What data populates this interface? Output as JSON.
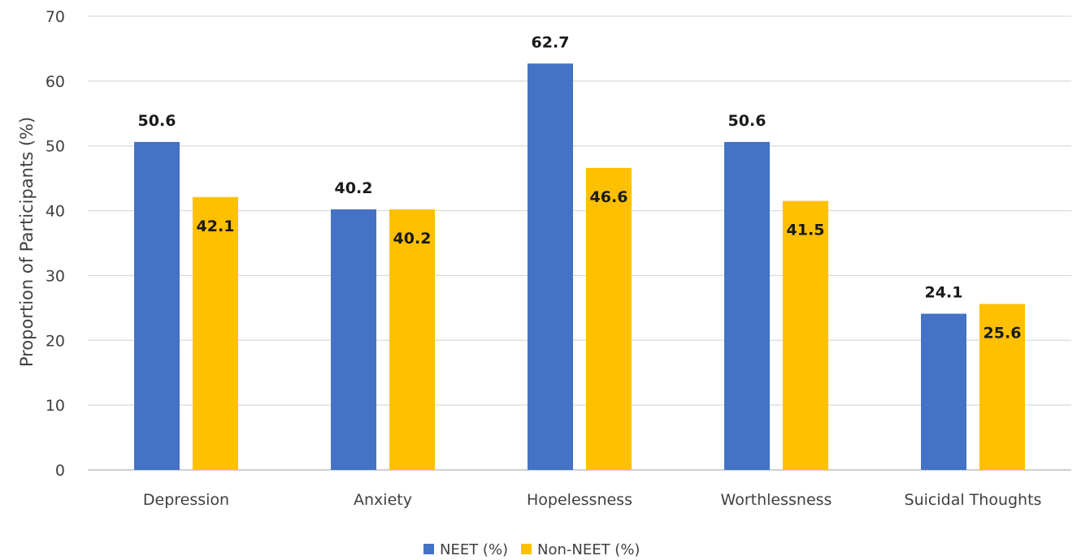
{
  "chart_data": {
    "type": "bar",
    "categories": [
      "Depression",
      "Anxiety",
      "Hopelessness",
      "Worthlessness",
      "Suicidal Thoughts"
    ],
    "series": [
      {
        "name": "NEET (%)",
        "values": [
          50.6,
          40.2,
          62.7,
          50.6,
          24.1
        ],
        "color": "#4472C4"
      },
      {
        "name": "Non-NEET (%)",
        "values": [
          42.1,
          40.2,
          46.6,
          41.5,
          25.6
        ],
        "color": "#FFC000"
      }
    ],
    "data_labels": [
      [
        "50.6",
        "40.2",
        "62.7",
        "50.6",
        "24.1"
      ],
      [
        "42.1",
        "40.2",
        "46.6",
        "41.5",
        "25.6"
      ]
    ],
    "ylabel": "Proportion of Participants (%)",
    "ylim": [
      0,
      70
    ],
    "yticks": [
      0,
      10,
      20,
      30,
      40,
      50,
      60,
      70
    ],
    "grid": true,
    "legend_position": "bottom"
  }
}
